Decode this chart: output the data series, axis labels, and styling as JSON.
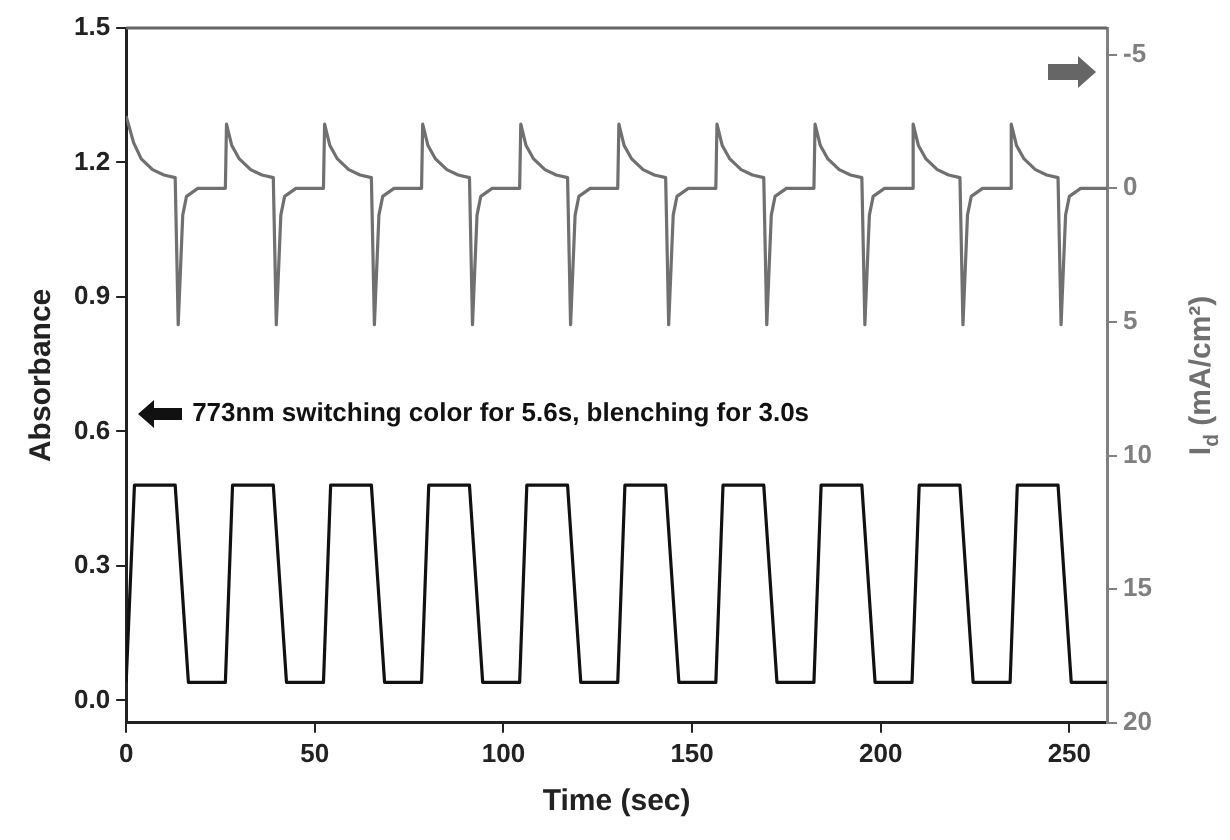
{
  "chart_data": {
    "type": "line",
    "xlabel": "Time (sec)",
    "ylabel": "Absorbance",
    "y2label": "I$_{d}$ (mA/cm²)",
    "xlim": [
      0,
      260
    ],
    "xticks": [
      0,
      50,
      100,
      150,
      200,
      250
    ],
    "ylim": [
      -0.05,
      1.5
    ],
    "yticks": [
      {
        "value": 0,
        "label": "0.0"
      },
      0.3,
      0.6,
      0.9,
      1.2,
      1.5
    ],
    "y2lim": [
      20,
      -6
    ],
    "y2ticks": [
      -5,
      0,
      5,
      10,
      15,
      20
    ],
    "grid": false,
    "legend": false,
    "marker": "none",
    "line_style": "solid",
    "annotations": [
      "773nm switching color for 5.6s, blenching for 3.0s"
    ],
    "series": [
      {
        "color": "#111111",
        "x": [
          0,
          2.2,
          13,
          16.5,
          26.3,
          28.2,
          39,
          42.5,
          52.3,
          54.2,
          65,
          68.5,
          78.3,
          80.2,
          91,
          94.5,
          104.3,
          106.2,
          117,
          120.5,
          130.3,
          132.2,
          143,
          146.5,
          156.3,
          158.2,
          169,
          172.5,
          182.3,
          184.2,
          195,
          198.5,
          208.3,
          210.2,
          221,
          224.5,
          234.3,
          236.2,
          247,
          250.5,
          260
        ],
        "values": [
          0.04,
          0.48,
          0.48,
          0.04,
          0.04,
          0.48,
          0.48,
          0.04,
          0.04,
          0.48,
          0.48,
          0.04,
          0.04,
          0.48,
          0.48,
          0.04,
          0.04,
          0.48,
          0.48,
          0.04,
          0.04,
          0.48,
          0.48,
          0.04,
          0.04,
          0.48,
          0.48,
          0.04,
          0.04,
          0.48,
          0.48,
          0.04,
          0.04,
          0.48,
          0.48,
          0.04,
          0.04,
          0.48,
          0.48,
          0.04,
          0.04
        ]
      },
      {
        "color": "#707070",
        "axis": "y2",
        "x": [
          0,
          2,
          4,
          7,
          10,
          13,
          13.8,
          15,
          16,
          19,
          26.3,
          26.6,
          28,
          30,
          33,
          36,
          39,
          39.8,
          41,
          42,
          45,
          52.3,
          52.6,
          54,
          56,
          59,
          62,
          65,
          65.8,
          67,
          68,
          71,
          78.3,
          78.6,
          80,
          82,
          85,
          88,
          91,
          91.8,
          93,
          94,
          97,
          104.3,
          104.6,
          106,
          108,
          111,
          114,
          117,
          117.8,
          119,
          120,
          123,
          130.3,
          130.6,
          132,
          134,
          137,
          140,
          143,
          143.8,
          145,
          146,
          149,
          156.3,
          156.6,
          158,
          160,
          163,
          166,
          169,
          169.8,
          171,
          172,
          175,
          182.3,
          182.6,
          184,
          186,
          189,
          192,
          195,
          195.8,
          197,
          198,
          201,
          208.3,
          208.6,
          210,
          212,
          215,
          218,
          221,
          221.8,
          223,
          224,
          227,
          234.3,
          234.6,
          236,
          238,
          241,
          244,
          247,
          247.8,
          249,
          250,
          253,
          260
        ],
        "values": [
          -2.7,
          -1.7,
          -1.1,
          -0.7,
          -0.5,
          -0.4,
          5.1,
          1,
          0.3,
          0,
          0,
          -2.4,
          -1.6,
          -1.1,
          -0.7,
          -0.5,
          -0.4,
          5.1,
          1,
          0.3,
          0,
          0,
          -2.4,
          -1.6,
          -1.1,
          -0.7,
          -0.5,
          -0.4,
          5.1,
          1,
          0.3,
          0,
          0,
          -2.4,
          -1.6,
          -1.1,
          -0.7,
          -0.5,
          -0.4,
          5.1,
          1,
          0.3,
          0,
          0,
          -2.4,
          -1.6,
          -1.1,
          -0.7,
          -0.5,
          -0.4,
          5.1,
          1,
          0.3,
          0,
          0,
          -2.4,
          -1.6,
          -1.1,
          -0.7,
          -0.5,
          -0.4,
          5.1,
          1,
          0.3,
          0,
          0,
          -2.4,
          -1.6,
          -1.1,
          -0.7,
          -0.5,
          -0.4,
          5.1,
          1,
          0.3,
          0,
          0,
          -2.4,
          -1.6,
          -1.1,
          -0.7,
          -0.5,
          -0.4,
          5.1,
          1,
          0.3,
          0,
          0,
          -2.4,
          -1.6,
          -1.1,
          -0.7,
          -0.5,
          -0.4,
          5.1,
          1,
          0.3,
          0,
          0,
          -2.4,
          -1.6,
          -1.1,
          -0.7,
          -0.5,
          -0.4,
          5.1,
          1,
          0.3,
          0,
          0
        ]
      }
    ]
  }
}
